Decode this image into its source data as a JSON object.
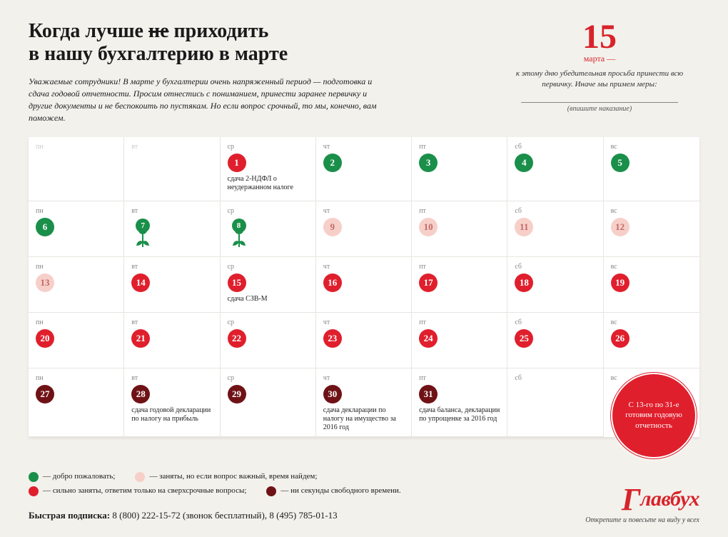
{
  "colors": {
    "green": "#1a8f4a",
    "pink": "#f7cfc9",
    "red": "#e01f2d",
    "dark": "#6f1216",
    "accent": "#d8232a",
    "bg": "#f3f1ec"
  },
  "title_pre": "Когда лучше ",
  "title_strike": "не",
  "title_post": " приходить\nв нашу бухгалтерию в марте",
  "intro": "Уважаемые сотрудники! В марте у бухгалтерии очень напряженный период — подготовка и сдача годовой отчетности. Просим отнестись с пониманием, принести заранее первичку и другие документы и не беспокоить по пустякам. Но если вопрос срочный, то мы, конечно, вам поможем.",
  "deadline": {
    "number": "15",
    "month": "марта —",
    "text": "к этому дню убедительная просьба принести всю первичку. Иначе мы примем меры:",
    "caption": "(впишите наказание)"
  },
  "dow": [
    "пн",
    "вт",
    "ср",
    "чт",
    "пт",
    "сб",
    "вс"
  ],
  "weeks": [
    [
      {
        "n": "",
        "c": "none",
        "dow_empty": true
      },
      {
        "n": "",
        "c": "none",
        "dow_empty": true
      },
      {
        "n": "1",
        "c": "red",
        "note": "сдача 2-НДФЛ о неудержанном налоге"
      },
      {
        "n": "2",
        "c": "green"
      },
      {
        "n": "3",
        "c": "green"
      },
      {
        "n": "4",
        "c": "green"
      },
      {
        "n": "5",
        "c": "green"
      }
    ],
    [
      {
        "n": "6",
        "c": "green"
      },
      {
        "n": "7",
        "c": "green",
        "tulip": true
      },
      {
        "n": "8",
        "c": "green",
        "tulip": true
      },
      {
        "n": "9",
        "c": "pink"
      },
      {
        "n": "10",
        "c": "pink"
      },
      {
        "n": "11",
        "c": "pink"
      },
      {
        "n": "12",
        "c": "pink"
      }
    ],
    [
      {
        "n": "13",
        "c": "pink"
      },
      {
        "n": "14",
        "c": "red"
      },
      {
        "n": "15",
        "c": "red",
        "note": "сдача СЗВ-М"
      },
      {
        "n": "16",
        "c": "red"
      },
      {
        "n": "17",
        "c": "red"
      },
      {
        "n": "18",
        "c": "red"
      },
      {
        "n": "19",
        "c": "red"
      }
    ],
    [
      {
        "n": "20",
        "c": "red"
      },
      {
        "n": "21",
        "c": "red"
      },
      {
        "n": "22",
        "c": "red"
      },
      {
        "n": "23",
        "c": "red"
      },
      {
        "n": "24",
        "c": "red"
      },
      {
        "n": "25",
        "c": "red"
      },
      {
        "n": "26",
        "c": "red"
      }
    ],
    [
      {
        "n": "27",
        "c": "dark"
      },
      {
        "n": "28",
        "c": "dark",
        "note": "сдача годовой декларации по налогу на прибыль"
      },
      {
        "n": "29",
        "c": "dark"
      },
      {
        "n": "30",
        "c": "dark",
        "note": "сдача декларации по налогу на имущество за 2016 год"
      },
      {
        "n": "31",
        "c": "dark",
        "note": "сдача баланса, декларации по упрощенке за 2016 год"
      },
      {
        "n": "",
        "c": "none"
      },
      {
        "n": "",
        "c": "none",
        "hidden": true
      }
    ]
  ],
  "badge": "С 13-го по 31-е готовим годовую отчетность",
  "legend": [
    {
      "c": "green",
      "t": "— добро пожаловать;"
    },
    {
      "c": "pink",
      "t": "— заняты, но если вопрос важный, время найдем;"
    },
    {
      "c": "red",
      "t": "— сильно заняты, ответим только на сверхсрочные вопросы;"
    },
    {
      "c": "dark",
      "t": "— ни секунды свободного времени."
    }
  ],
  "subscribe_label": "Быстрая подписка: ",
  "subscribe_phones": "8 (800) 222-15-72 (звонок бесплатный), 8 (495) 785-01-13",
  "logo_text": "лавбух",
  "logo_cap": "Г",
  "logo_sub": "Открепите и повесьте на виду у всех"
}
